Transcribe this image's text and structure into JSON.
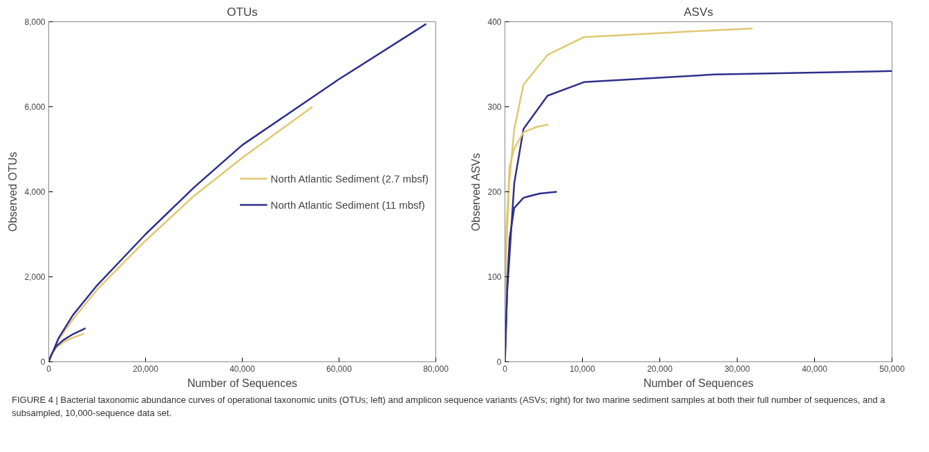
{
  "chart_data": [
    {
      "type": "line",
      "title": "OTUs",
      "xlabel": "Number of Sequences",
      "ylabel": "Observed OTUs",
      "xlim": [
        0,
        80000
      ],
      "ylim": [
        0,
        8000
      ],
      "xticks": [
        {
          "value": 0,
          "label": "0"
        },
        {
          "value": 20000,
          "label": "20,000"
        },
        {
          "value": 40000,
          "label": "40,000"
        },
        {
          "value": 60000,
          "label": "60,000"
        },
        {
          "value": 80000,
          "label": "80,000"
        }
      ],
      "yticks": [
        {
          "value": 0,
          "label": "0"
        },
        {
          "value": 2000,
          "label": "2,000"
        },
        {
          "value": 4000,
          "label": "4,000"
        },
        {
          "value": 6000,
          "label": "6,000"
        },
        {
          "value": 8000,
          "label": "8,000"
        }
      ],
      "grid": false,
      "legend": "right",
      "marker": "none",
      "line_style": "solid",
      "series": [
        {
          "name": "North Atlantic Sediment (2.7 mbsf)",
          "color": "#e0c870",
          "x": [
            0,
            2000,
            5000,
            10000,
            20000,
            30000,
            40000,
            54500
          ],
          "values": [
            0,
            520,
            1000,
            1700,
            2850,
            3900,
            4800,
            6000
          ]
        },
        {
          "name": "North Atlantic Sediment (11 mbsf)",
          "color": "#2e2f8c",
          "x": [
            0,
            2000,
            5000,
            10000,
            20000,
            30000,
            40000,
            60000,
            78000
          ],
          "values": [
            0,
            550,
            1100,
            1800,
            3000,
            4100,
            5100,
            6650,
            7950
          ]
        },
        {
          "color": "#e0c870",
          "x": [
            0,
            500,
            1500,
            3000,
            5000,
            7300
          ],
          "values": [
            0,
            150,
            330,
            460,
            570,
            660
          ]
        },
        {
          "color": "#2e2f8c",
          "x": [
            0,
            500,
            1500,
            3000,
            5000,
            7600
          ],
          "values": [
            0,
            160,
            360,
            510,
            650,
            790
          ]
        }
      ],
      "annotations": [
        "FIGURE 4 | Bacterial taxonomic abundance curves of operational taxonomic units (OTUs; left) and amplicon sequence variants (ASVs; right) for two marine sediment samples at both their full number of sequences, and a subsampled, 10,000-sequence data set."
      ]
    },
    {
      "type": "line",
      "title": "ASVs",
      "xlabel": "Number of Sequences",
      "ylabel": "Observed ASVs",
      "xlim": [
        0,
        50000
      ],
      "ylim": [
        0,
        400
      ],
      "xticks": [
        {
          "value": 0,
          "label": "0"
        },
        {
          "value": 10000,
          "label": "10,000"
        },
        {
          "value": 20000,
          "label": "20,000"
        },
        {
          "value": 30000,
          "label": "30,000"
        },
        {
          "value": 40000,
          "label": "40,000"
        },
        {
          "value": 50000,
          "label": "50,000"
        }
      ],
      "yticks": [
        0,
        100,
        200,
        300,
        400
      ],
      "grid": false,
      "marker": "none",
      "line_style": "solid",
      "series": [
        {
          "color": "#e0c870",
          "x": [
            0,
            100,
            550,
            1200,
            2400,
            5500,
            10200,
            27000,
            32000
          ],
          "values": [
            0,
            113,
            210,
            274,
            326,
            361,
            382,
            390,
            392
          ]
        },
        {
          "color": "#2e2f8c",
          "x": [
            0,
            280,
            1200,
            2400,
            5500,
            10200,
            27000,
            50000
          ],
          "values": [
            0,
            81,
            210,
            274,
            313,
            329,
            338,
            342
          ]
        },
        {
          "color": "#e0c870",
          "x": [
            0,
            200,
            600,
            1200,
            2400,
            4000,
            5600
          ],
          "values": [
            0,
            160,
            230,
            251,
            270,
            276,
            279
          ]
        },
        {
          "color": "#2e2f8c",
          "x": [
            0,
            300,
            600,
            1200,
            2400,
            4500,
            6700
          ],
          "values": [
            0,
            90,
            145,
            181,
            193,
            198,
            200
          ]
        }
      ]
    }
  ]
}
